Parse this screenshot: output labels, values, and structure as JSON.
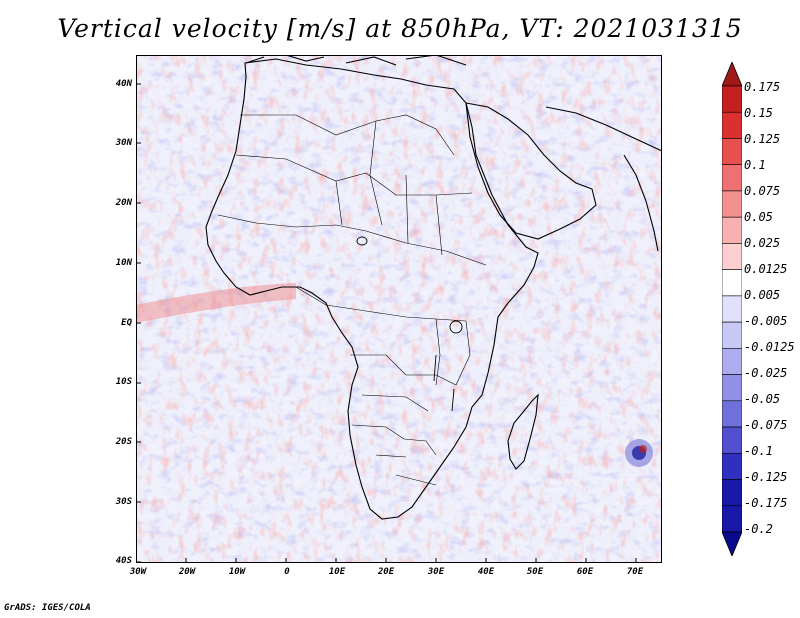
{
  "title": "Vertical velocity [m/s] at 850hPa, VT: 2021031315",
  "credit": "GrADS: IGES/COLA",
  "map": {
    "region": "Africa",
    "lon_range": [
      -30,
      76
    ],
    "lat_range": [
      -40,
      45
    ],
    "lat_ticks": [
      "40N",
      "30N",
      "20N",
      "10N",
      "EQ",
      "10S",
      "20S",
      "30S",
      "40S"
    ],
    "lon_ticks": [
      "30W",
      "20W",
      "10W",
      "0",
      "10E",
      "20E",
      "30E",
      "40E",
      "50E",
      "60E",
      "70E"
    ],
    "ocean_color": "#e4e6f8",
    "coast_color": "#000000"
  },
  "colorbar": {
    "levels": [
      "0.175",
      "0.15",
      "0.125",
      "0.1",
      "0.075",
      "0.05",
      "0.025",
      "0.0125",
      "0.005",
      "-0.005",
      "-0.0125",
      "-0.025",
      "-0.05",
      "-0.075",
      "-0.1",
      "-0.125",
      "-0.175",
      "-0.2"
    ],
    "colors": [
      "#a01818",
      "#c42020",
      "#dc3030",
      "#e85050",
      "#ee7070",
      "#f49090",
      "#f8b0b0",
      "#fcd0d0",
      "#ffffff",
      "#e0e0fa",
      "#c8c8f4",
      "#acacee",
      "#9090e6",
      "#7070dc",
      "#5050d0",
      "#3030c0",
      "#1818a8",
      "#0a0a8c"
    ]
  }
}
